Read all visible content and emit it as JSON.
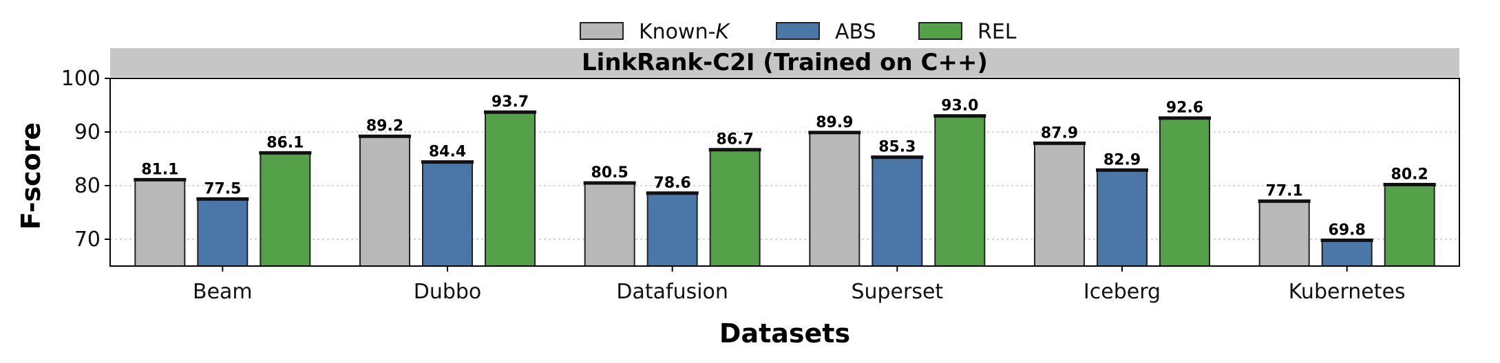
{
  "chart_data": {
    "type": "bar",
    "title": "LinkRank-C2I (Trained on C++)",
    "xlabel": "Datasets",
    "ylabel": "F-score",
    "ylim": [
      65,
      100
    ],
    "yticks": [
      70,
      80,
      90,
      100
    ],
    "grid": "y-dotted",
    "legend_position": "top-center",
    "categories": [
      "Beam",
      "Dubbo",
      "Datafusion",
      "Superset",
      "Iceberg",
      "Kubernetes"
    ],
    "series": [
      {
        "name": "Known-",
        "name_italic_suffix": "K",
        "color": "#b8b8b8",
        "values": [
          81.1,
          89.2,
          80.5,
          89.9,
          87.9,
          77.1
        ]
      },
      {
        "name": "ABS",
        "color": "#4a76a8",
        "values": [
          77.5,
          84.4,
          78.6,
          85.3,
          82.9,
          69.8
        ]
      },
      {
        "name": "REL",
        "color": "#55a14a",
        "values": [
          86.1,
          93.7,
          86.7,
          93.0,
          92.6,
          80.2
        ]
      }
    ]
  }
}
